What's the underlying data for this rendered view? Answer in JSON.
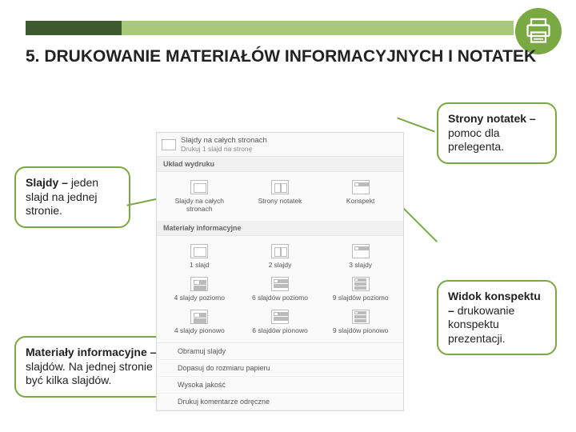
{
  "colors": {
    "accent_dark": "#3d5a2e",
    "accent_light": "#a8c97a",
    "badge": "#7aa843",
    "callout_border": "#7aa843",
    "text": "#222222",
    "panel_bg": "#fafafa",
    "panel_border": "#d8d8d8"
  },
  "title": "5. DRUKOWANIE MATERIAŁÓW INFORMACYJNYCH I NOTATEK",
  "callouts": {
    "notes": {
      "bold": "Strony notatek – ",
      "rest": "pomoc dla prelegenta."
    },
    "slides": {
      "bold": "Slajdy – ",
      "rest": "jeden slajd na jednej stronie."
    },
    "handouts": {
      "bold": "Materiały informacyjne – ",
      "rest": "kopie slajdów. Na jednej stronie może być kilka slajdów."
    },
    "outline": {
      "bold": "Widok konspektu – ",
      "rest": "drukowanie konspektu prezentacji."
    }
  },
  "panel": {
    "top_label": "Slajdy na całych stronach",
    "top_sub": "Drukuj 1 slajd na stronę",
    "section_layout": "Układ wydruku",
    "layout_options": [
      {
        "label": "Slajdy na całych stronach",
        "cls": "s1"
      },
      {
        "label": "Strony notatek",
        "cls": "s2"
      },
      {
        "label": "Konspekt",
        "cls": "s3"
      }
    ],
    "section_handouts": "Materiały informacyjne",
    "handout_options": [
      {
        "label": "1 slajd",
        "cls": "s1"
      },
      {
        "label": "2 slajdy",
        "cls": "s2"
      },
      {
        "label": "3 slajdy",
        "cls": "s3"
      },
      {
        "label": "4 slajdy poziomo",
        "cls": "h4"
      },
      {
        "label": "6 slajdów poziomo",
        "cls": "h6"
      },
      {
        "label": "9 slajdów poziomo",
        "cls": "h9"
      },
      {
        "label": "4 slajdy pionowo",
        "cls": "h4"
      },
      {
        "label": "6 slajdów pionowo",
        "cls": "h6"
      },
      {
        "label": "9 slajdów pionowo",
        "cls": "h9"
      }
    ],
    "extras": [
      "Obramuj slajdy",
      "Dopasuj do rozmiaru papieru",
      "Wysoka jakość",
      "Drukuj komentarze odręczne"
    ]
  }
}
